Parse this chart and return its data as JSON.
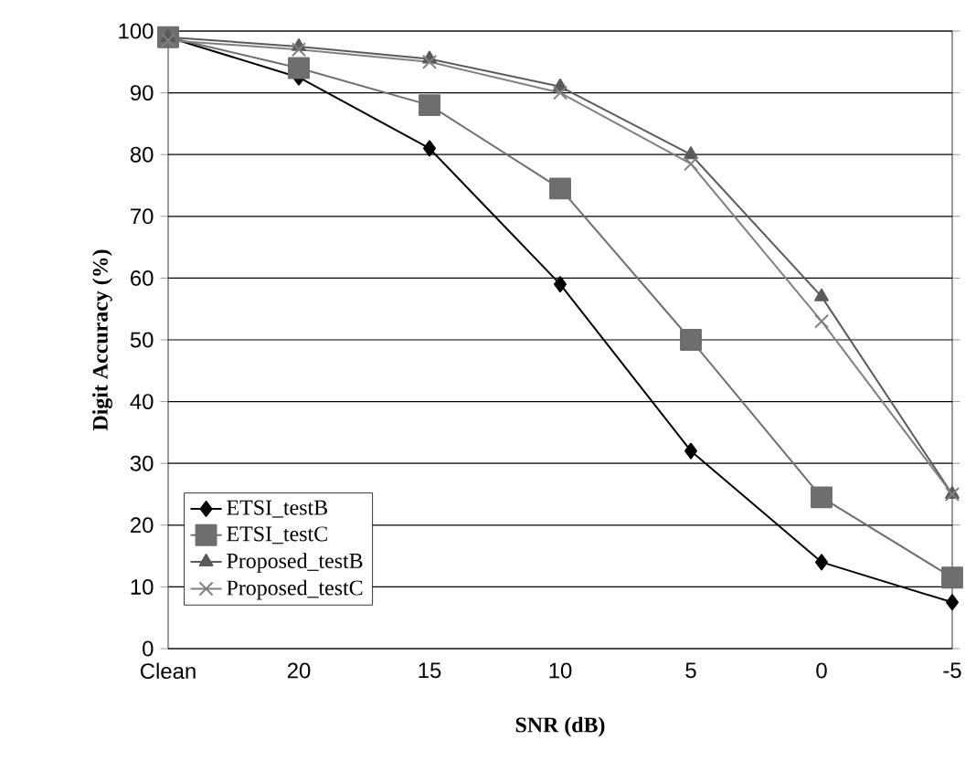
{
  "chart_data": {
    "type": "line",
    "xlabel": "SNR (dB)",
    "ylabel": "Digit Accuracy (%)",
    "categories": [
      "Clean",
      "20",
      "15",
      "10",
      "5",
      "0",
      "-5"
    ],
    "series": [
      {
        "name": "ETSI_testB",
        "color": "#000000",
        "marker": "diamond",
        "values": [
          99,
          92.5,
          81,
          59,
          32,
          14,
          7.5
        ]
      },
      {
        "name": "ETSI_testC",
        "color": "#6e6e6e",
        "marker": "square",
        "values": [
          99,
          94,
          88,
          74.5,
          50,
          24.5,
          11.5
        ]
      },
      {
        "name": "Proposed_testB",
        "color": "#5a5a5a",
        "marker": "triangle",
        "values": [
          99,
          97.5,
          95.5,
          91,
          80,
          57,
          25
        ]
      },
      {
        "name": "Proposed_testC",
        "color": "#808080",
        "marker": "cross",
        "values": [
          98.5,
          97,
          95,
          90,
          78.5,
          53,
          25
        ]
      }
    ],
    "ylim": [
      0,
      100
    ],
    "yticks": [
      0,
      10,
      20,
      30,
      40,
      50,
      60,
      70,
      80,
      90,
      100
    ],
    "grid": "y",
    "legend": "left",
    "line_style": "solid"
  }
}
